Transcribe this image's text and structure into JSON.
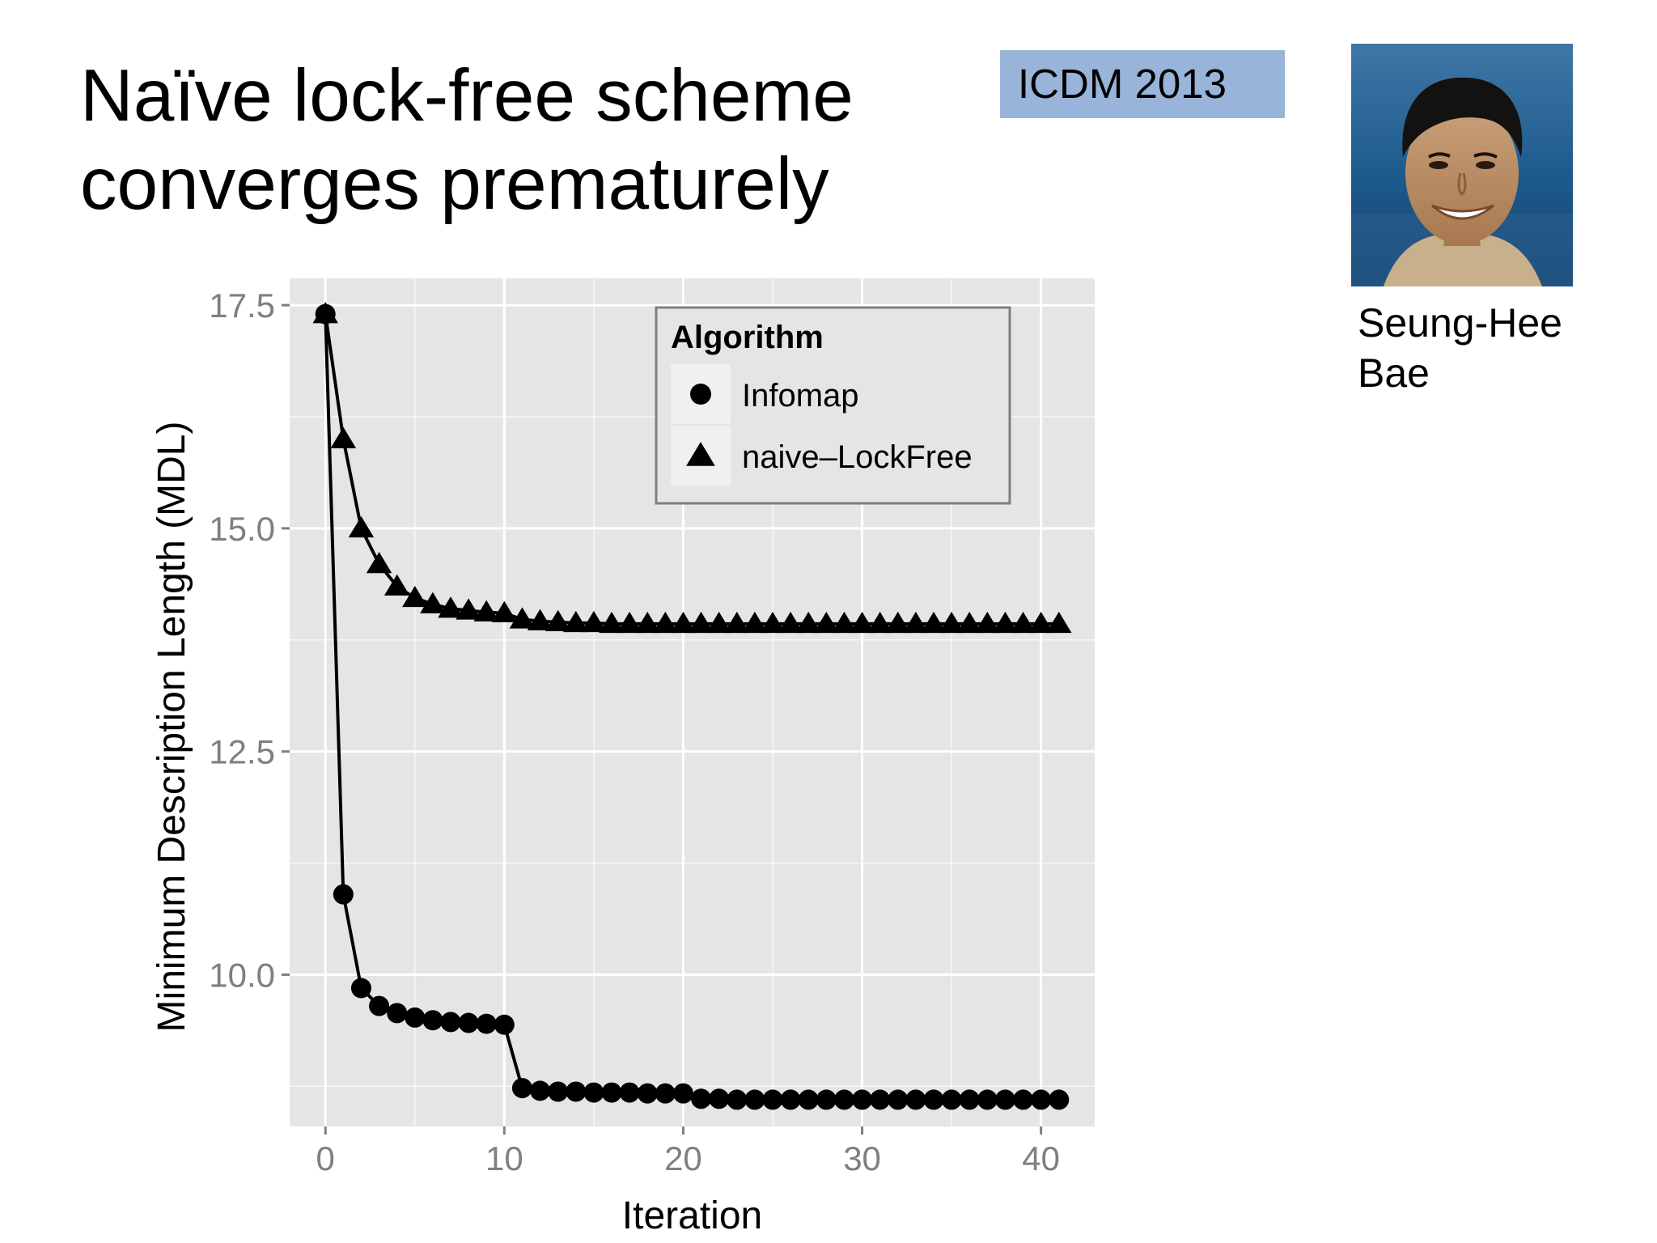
{
  "slide": {
    "title_lines": [
      "Naïve lock-free scheme",
      "converges prematurely"
    ],
    "venue": "ICDM 2013",
    "person_name_lines": [
      "Seung-Hee",
      "Bae"
    ]
  },
  "colors": {
    "badge": "#98b4d8",
    "panel": "#e5e5e5",
    "grid": "#ffffff",
    "marks": "#000000"
  },
  "chart_data": {
    "type": "line",
    "xlabel": "Iteration",
    "ylabel": "Minimum Description Length (MDL)",
    "xlim": [
      -2,
      43
    ],
    "ylim": [
      8.3,
      17.8
    ],
    "x_ticks": [
      0,
      10,
      20,
      30,
      40
    ],
    "y_ticks": [
      10.0,
      12.5,
      15.0,
      17.5
    ],
    "y_tick_labels": [
      "10.0",
      "12.5",
      "15.0",
      "17.5"
    ],
    "grid": true,
    "legend": {
      "title": "Algorithm",
      "position": "top-right"
    },
    "series": [
      {
        "name": "Infomap",
        "marker": "circle",
        "x": [
          0,
          1,
          2,
          3,
          4,
          5,
          6,
          7,
          8,
          9,
          10,
          11,
          12,
          13,
          14,
          15,
          16,
          17,
          18,
          19,
          20,
          21,
          22,
          23,
          24,
          25,
          26,
          27,
          28,
          29,
          30,
          31,
          32,
          33,
          34,
          35,
          36,
          37,
          38,
          39,
          40,
          41
        ],
        "values": [
          17.4,
          10.9,
          9.85,
          9.65,
          9.57,
          9.52,
          9.49,
          9.47,
          9.46,
          9.45,
          9.44,
          8.73,
          8.7,
          8.69,
          8.69,
          8.68,
          8.68,
          8.68,
          8.67,
          8.67,
          8.67,
          8.61,
          8.61,
          8.6,
          8.6,
          8.6,
          8.6,
          8.6,
          8.6,
          8.6,
          8.6,
          8.6,
          8.6,
          8.6,
          8.6,
          8.6,
          8.6,
          8.6,
          8.6,
          8.6,
          8.6,
          8.6
        ]
      },
      {
        "name": "naive–LockFree",
        "marker": "triangle",
        "x": [
          0,
          1,
          2,
          3,
          4,
          5,
          6,
          7,
          8,
          9,
          10,
          11,
          12,
          13,
          14,
          15,
          16,
          17,
          18,
          19,
          20,
          21,
          22,
          23,
          24,
          25,
          26,
          27,
          28,
          29,
          30,
          31,
          32,
          33,
          34,
          35,
          36,
          37,
          38,
          39,
          40,
          41
        ],
        "values": [
          17.4,
          16.0,
          15.0,
          14.6,
          14.35,
          14.22,
          14.15,
          14.1,
          14.08,
          14.06,
          14.05,
          13.98,
          13.96,
          13.95,
          13.94,
          13.94,
          13.93,
          13.93,
          13.93,
          13.93,
          13.93,
          13.93,
          13.93,
          13.93,
          13.93,
          13.93,
          13.93,
          13.93,
          13.93,
          13.93,
          13.93,
          13.93,
          13.93,
          13.93,
          13.93,
          13.93,
          13.93,
          13.93,
          13.93,
          13.93,
          13.93,
          13.93
        ]
      }
    ]
  }
}
